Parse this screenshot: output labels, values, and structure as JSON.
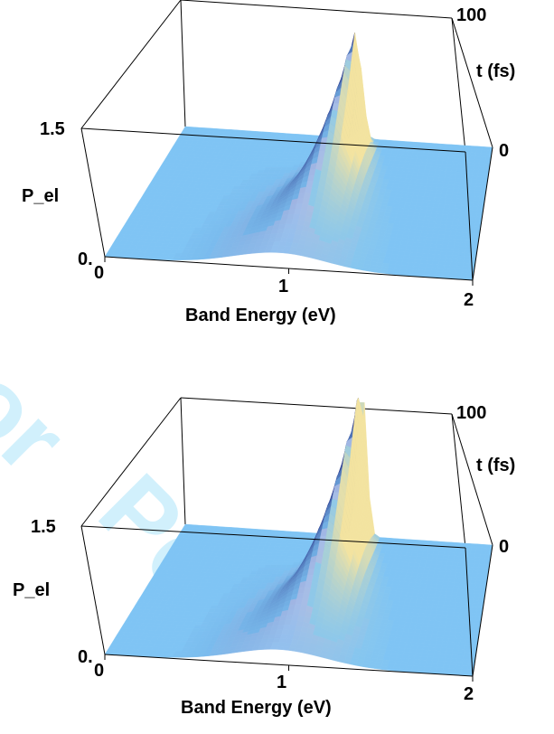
{
  "chart_data": [
    {
      "type": "surface3d",
      "xlabel": "Band Energy (eV)",
      "ylabel": "t (fs)",
      "zlabel": "P_el",
      "x_ticks": [
        "0",
        "1",
        "2"
      ],
      "y_ticks": [
        "0",
        "100"
      ],
      "z_ticks": [
        "0.",
        "1.5"
      ],
      "xlim": [
        0,
        2
      ],
      "ylim": [
        0,
        100
      ],
      "zlim": [
        0,
        1.5
      ],
      "peak": {
        "x": 1.15,
        "t": 92,
        "value": 1.45
      },
      "ridge": {
        "x_at_t0": 0.95,
        "x_at_tmax": 1.15
      },
      "colormap": [
        "#7fc4f4",
        "#2f3e8f",
        "#f3e3a0"
      ]
    },
    {
      "type": "surface3d",
      "xlabel": "Band Energy (eV)",
      "ylabel": "t (fs)",
      "zlabel": "P_el",
      "x_ticks": [
        "0",
        "1",
        "2"
      ],
      "y_ticks": [
        "0",
        "100"
      ],
      "z_ticks": [
        "0.",
        "1.5"
      ],
      "xlim": [
        0,
        2
      ],
      "ylim": [
        0,
        100
      ],
      "zlim": [
        0,
        1.5
      ],
      "peak": {
        "x": 1.15,
        "t": 100,
        "value": 1.85
      },
      "ridge": {
        "x_at_t0": 0.95,
        "x_at_tmax": 1.15
      },
      "colormap": [
        "#7fc4f4",
        "#2f3e8f",
        "#f3e3a0"
      ]
    }
  ]
}
